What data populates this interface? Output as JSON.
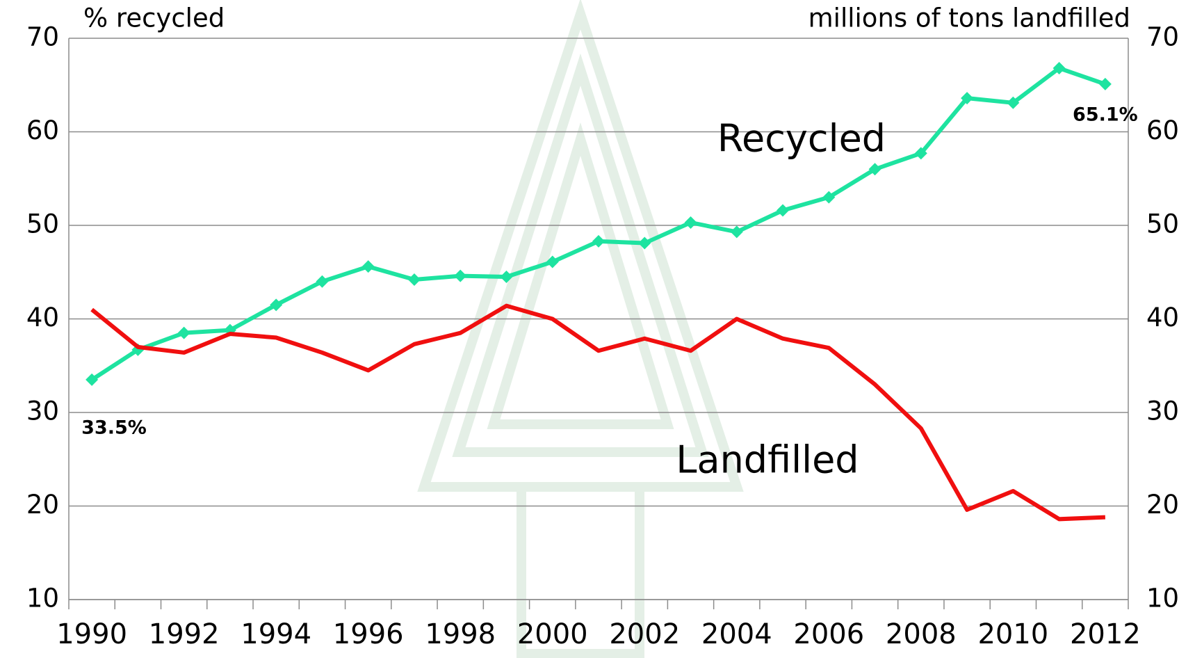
{
  "chart_data": {
    "type": "line",
    "y_label": "% recycled",
    "y2_label": "millions of tons landfilled",
    "categories": [
      "1990",
      null,
      "1992",
      null,
      "1994",
      null,
      "1996",
      null,
      "1998",
      null,
      "2000",
      null,
      "2002",
      null,
      "2004",
      null,
      "2006",
      null,
      "2008",
      null,
      "2010",
      null,
      "2012"
    ],
    "series": [
      {
        "name": "Recycled",
        "color": "#1ee3a0",
        "marker": "diamond",
        "values": [
          33.5,
          36.7,
          38.5,
          38.8,
          41.5,
          44.0,
          45.6,
          44.2,
          44.6,
          44.5,
          46.1,
          48.3,
          48.1,
          50.3,
          49.3,
          51.6,
          53.0,
          56.0,
          57.7,
          63.6,
          63.1,
          66.8,
          65.1
        ],
        "value_labels": [
          "33.5%",
          null,
          null,
          null,
          null,
          null,
          null,
          null,
          null,
          null,
          null,
          null,
          null,
          null,
          null,
          null,
          null,
          null,
          null,
          null,
          null,
          null,
          "65.1%"
        ]
      },
      {
        "name": "Landfilled",
        "color": "#f00f0f",
        "axis": "y2",
        "values": [
          41.0,
          37.0,
          36.4,
          38.4,
          38.0,
          36.4,
          34.5,
          37.3,
          38.5,
          41.4,
          40.0,
          36.6,
          37.9,
          36.6,
          40.0,
          37.9,
          36.9,
          33.0,
          28.3,
          19.6,
          21.6,
          18.6,
          18.8
        ]
      }
    ],
    "ylim": [
      10,
      70
    ],
    "yticks": [
      10,
      20,
      30,
      40,
      50,
      60,
      70
    ],
    "y2lim": [
      10,
      70
    ],
    "y2ticks": [
      10,
      20,
      30,
      40,
      50,
      60,
      70
    ],
    "grid": true
  }
}
